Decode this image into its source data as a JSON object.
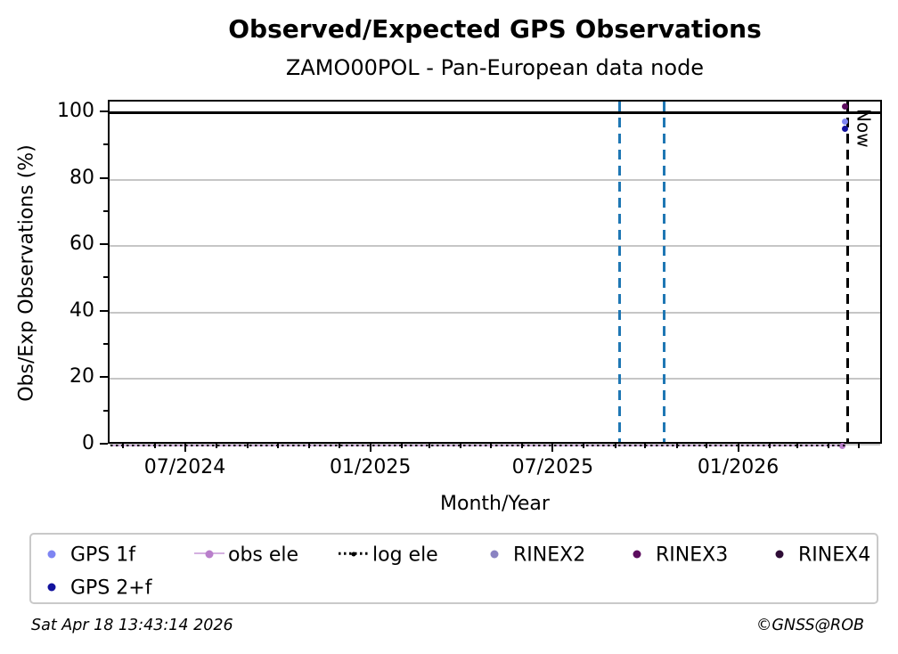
{
  "title": "Observed/Expected GPS Observations",
  "subtitle": "ZAMO00POL - Pan-European data node",
  "footer": {
    "timestamp": "Sat Apr 18 13:43:14 2026",
    "copyright": "©GNSS@ROB"
  },
  "chart_data": {
    "type": "scatter",
    "title": "Observed/Expected GPS Observations",
    "subtitle": "ZAMO00POL - Pan-European data node",
    "xlabel": "Month/Year",
    "ylabel": "Obs/Exp Observations (%)",
    "ylim": [
      0,
      103.5
    ],
    "x_start": "2024-04-16",
    "x_end": "2026-05-24",
    "grid": "horizontal",
    "yticks": [
      {
        "value": 0,
        "label": "0"
      },
      {
        "value": 20,
        "label": "20"
      },
      {
        "value": 40,
        "label": "40"
      },
      {
        "value": 60,
        "label": "60"
      },
      {
        "value": 80,
        "label": "80"
      },
      {
        "value": 100,
        "label": "100"
      }
    ],
    "yticks_minor": [
      10,
      30,
      50,
      70,
      90
    ],
    "xticks": [
      {
        "date": "2024-07-01",
        "label": "07/2024"
      },
      {
        "date": "2025-01-01",
        "label": "01/2025"
      },
      {
        "date": "2025-07-01",
        "label": "07/2025"
      },
      {
        "date": "2026-01-01",
        "label": "01/2026"
      }
    ],
    "xticks_minor_interval": "month",
    "hlines": [
      {
        "y": 100,
        "color": "#000000",
        "style": "solid"
      }
    ],
    "vlines": [
      {
        "date": "2025-09-04",
        "color": "#1f77b4",
        "style": "dashed",
        "label": ""
      },
      {
        "date": "2025-10-18",
        "color": "#1f77b4",
        "style": "dashed",
        "label": ""
      },
      {
        "date": "2026-04-18",
        "color": "#000000",
        "style": "dashed",
        "label": "Now"
      }
    ],
    "series": [
      {
        "name": "GPS 1f",
        "type": "scatter",
        "color": "#7e85f2",
        "points": [
          {
            "date": "2026-04-15",
            "value": 97.3
          }
        ]
      },
      {
        "name": "GPS 2+f",
        "type": "scatter",
        "color": "#12129d",
        "points": [
          {
            "date": "2026-04-15",
            "value": 95.2
          }
        ]
      },
      {
        "name": "obs ele",
        "type": "line",
        "color": "#b97fcb",
        "line_color": "#d4b0e0",
        "y": 0,
        "from": "2024-04-16",
        "to": "2026-04-13",
        "end_marker": true
      },
      {
        "name": "log ele",
        "type": "dotted-line",
        "color": "#000000",
        "y": 0,
        "from": "2024-04-16",
        "to": "2026-04-17"
      },
      {
        "name": "RINEX2",
        "type": "scatter",
        "color": "#8a83c2",
        "points": []
      },
      {
        "name": "RINEX3",
        "type": "scatter",
        "color": "#5c0c5e",
        "points": [
          {
            "date": "2026-04-15",
            "value": 101.9
          }
        ]
      },
      {
        "name": "RINEX4",
        "type": "scatter",
        "color": "#2e0d36",
        "points": []
      }
    ],
    "legend": {
      "position": "below",
      "columns": 6,
      "entries": [
        {
          "label": "GPS 1f",
          "marker": "dot",
          "color": "#7e85f2",
          "col": 0,
          "row": 0
        },
        {
          "label": "GPS 2+f",
          "marker": "dot",
          "color": "#12129d",
          "col": 0,
          "row": 1
        },
        {
          "label": "obs ele",
          "marker": "line-dot",
          "color": "#b97fcb",
          "line_color": "#d4b0e0",
          "col": 1,
          "row": 0
        },
        {
          "label": "log ele",
          "marker": "dotted-line",
          "color": "#000000",
          "col": 2,
          "row": 0
        },
        {
          "label": "RINEX2",
          "marker": "dot",
          "color": "#8a83c2",
          "col": 3,
          "row": 0
        },
        {
          "label": "RINEX3",
          "marker": "dot",
          "color": "#5c0c5e",
          "col": 4,
          "row": 0
        },
        {
          "label": "RINEX4",
          "marker": "dot",
          "color": "#2e0d36",
          "col": 5,
          "row": 0
        }
      ]
    },
    "styles": {
      "grid_color": "#c6c6c6",
      "frame_color": "#000000",
      "background": "#ffffff"
    }
  }
}
